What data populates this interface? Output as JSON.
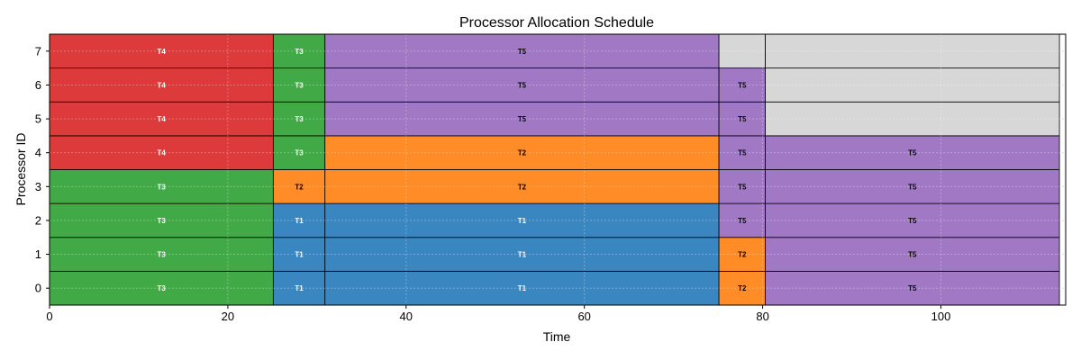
{
  "chart_data": {
    "type": "gantt",
    "title": "Processor Allocation Schedule",
    "xlabel": "Time",
    "ylabel": "Processor ID",
    "xlim": [
      0,
      114
    ],
    "xticks": [
      0,
      20,
      40,
      60,
      80,
      100
    ],
    "yticks": [
      0,
      1,
      2,
      3,
      4,
      5,
      6,
      7
    ],
    "grid": true,
    "colors": {
      "T1": "#3a86c0",
      "T2": "#ff8c26",
      "T3": "#41a945",
      "T4": "#dc3a3b",
      "T5": "#a078c4",
      "idle": "#d7d7d7"
    },
    "processors": [
      {
        "id": 0,
        "segments": [
          {
            "task": "T3",
            "start": 0,
            "end": 25.1
          },
          {
            "task": "T1",
            "start": 25.1,
            "end": 30.9
          },
          {
            "task": "T1",
            "start": 30.9,
            "end": 75.1
          },
          {
            "task": "T2",
            "start": 75.1,
            "end": 80.3
          },
          {
            "task": "T5",
            "start": 80.3,
            "end": 113.3
          }
        ]
      },
      {
        "id": 1,
        "segments": [
          {
            "task": "T3",
            "start": 0,
            "end": 25.1
          },
          {
            "task": "T1",
            "start": 25.1,
            "end": 30.9
          },
          {
            "task": "T1",
            "start": 30.9,
            "end": 75.1
          },
          {
            "task": "T2",
            "start": 75.1,
            "end": 80.3
          },
          {
            "task": "T5",
            "start": 80.3,
            "end": 113.3
          }
        ]
      },
      {
        "id": 2,
        "segments": [
          {
            "task": "T3",
            "start": 0,
            "end": 25.1
          },
          {
            "task": "T1",
            "start": 25.1,
            "end": 30.9
          },
          {
            "task": "T1",
            "start": 30.9,
            "end": 75.1
          },
          {
            "task": "T5",
            "start": 75.1,
            "end": 80.3
          },
          {
            "task": "T5",
            "start": 80.3,
            "end": 113.3
          }
        ]
      },
      {
        "id": 3,
        "segments": [
          {
            "task": "T3",
            "start": 0,
            "end": 25.1
          },
          {
            "task": "T2",
            "start": 25.1,
            "end": 30.9
          },
          {
            "task": "T2",
            "start": 30.9,
            "end": 75.1
          },
          {
            "task": "T5",
            "start": 75.1,
            "end": 80.3
          },
          {
            "task": "T5",
            "start": 80.3,
            "end": 113.3
          }
        ]
      },
      {
        "id": 4,
        "segments": [
          {
            "task": "T4",
            "start": 0,
            "end": 25.1
          },
          {
            "task": "T3",
            "start": 25.1,
            "end": 30.9
          },
          {
            "task": "T2",
            "start": 30.9,
            "end": 75.1
          },
          {
            "task": "T5",
            "start": 75.1,
            "end": 80.3
          },
          {
            "task": "T5",
            "start": 80.3,
            "end": 113.3
          }
        ]
      },
      {
        "id": 5,
        "segments": [
          {
            "task": "T4",
            "start": 0,
            "end": 25.1
          },
          {
            "task": "T3",
            "start": 25.1,
            "end": 30.9
          },
          {
            "task": "T5",
            "start": 30.9,
            "end": 75.1
          },
          {
            "task": "T5",
            "start": 75.1,
            "end": 80.3
          },
          {
            "task": null,
            "start": 80.3,
            "end": 113.3
          }
        ]
      },
      {
        "id": 6,
        "segments": [
          {
            "task": "T4",
            "start": 0,
            "end": 25.1
          },
          {
            "task": "T3",
            "start": 25.1,
            "end": 30.9
          },
          {
            "task": "T5",
            "start": 30.9,
            "end": 75.1
          },
          {
            "task": "T5",
            "start": 75.1,
            "end": 80.3
          },
          {
            "task": null,
            "start": 80.3,
            "end": 113.3
          }
        ]
      },
      {
        "id": 7,
        "segments": [
          {
            "task": "T4",
            "start": 0,
            "end": 25.1
          },
          {
            "task": "T3",
            "start": 25.1,
            "end": 30.9
          },
          {
            "task": "T5",
            "start": 30.9,
            "end": 75.1
          },
          {
            "task": null,
            "start": 75.1,
            "end": 80.3
          },
          {
            "task": null,
            "start": 80.3,
            "end": 113.3
          }
        ]
      }
    ]
  }
}
